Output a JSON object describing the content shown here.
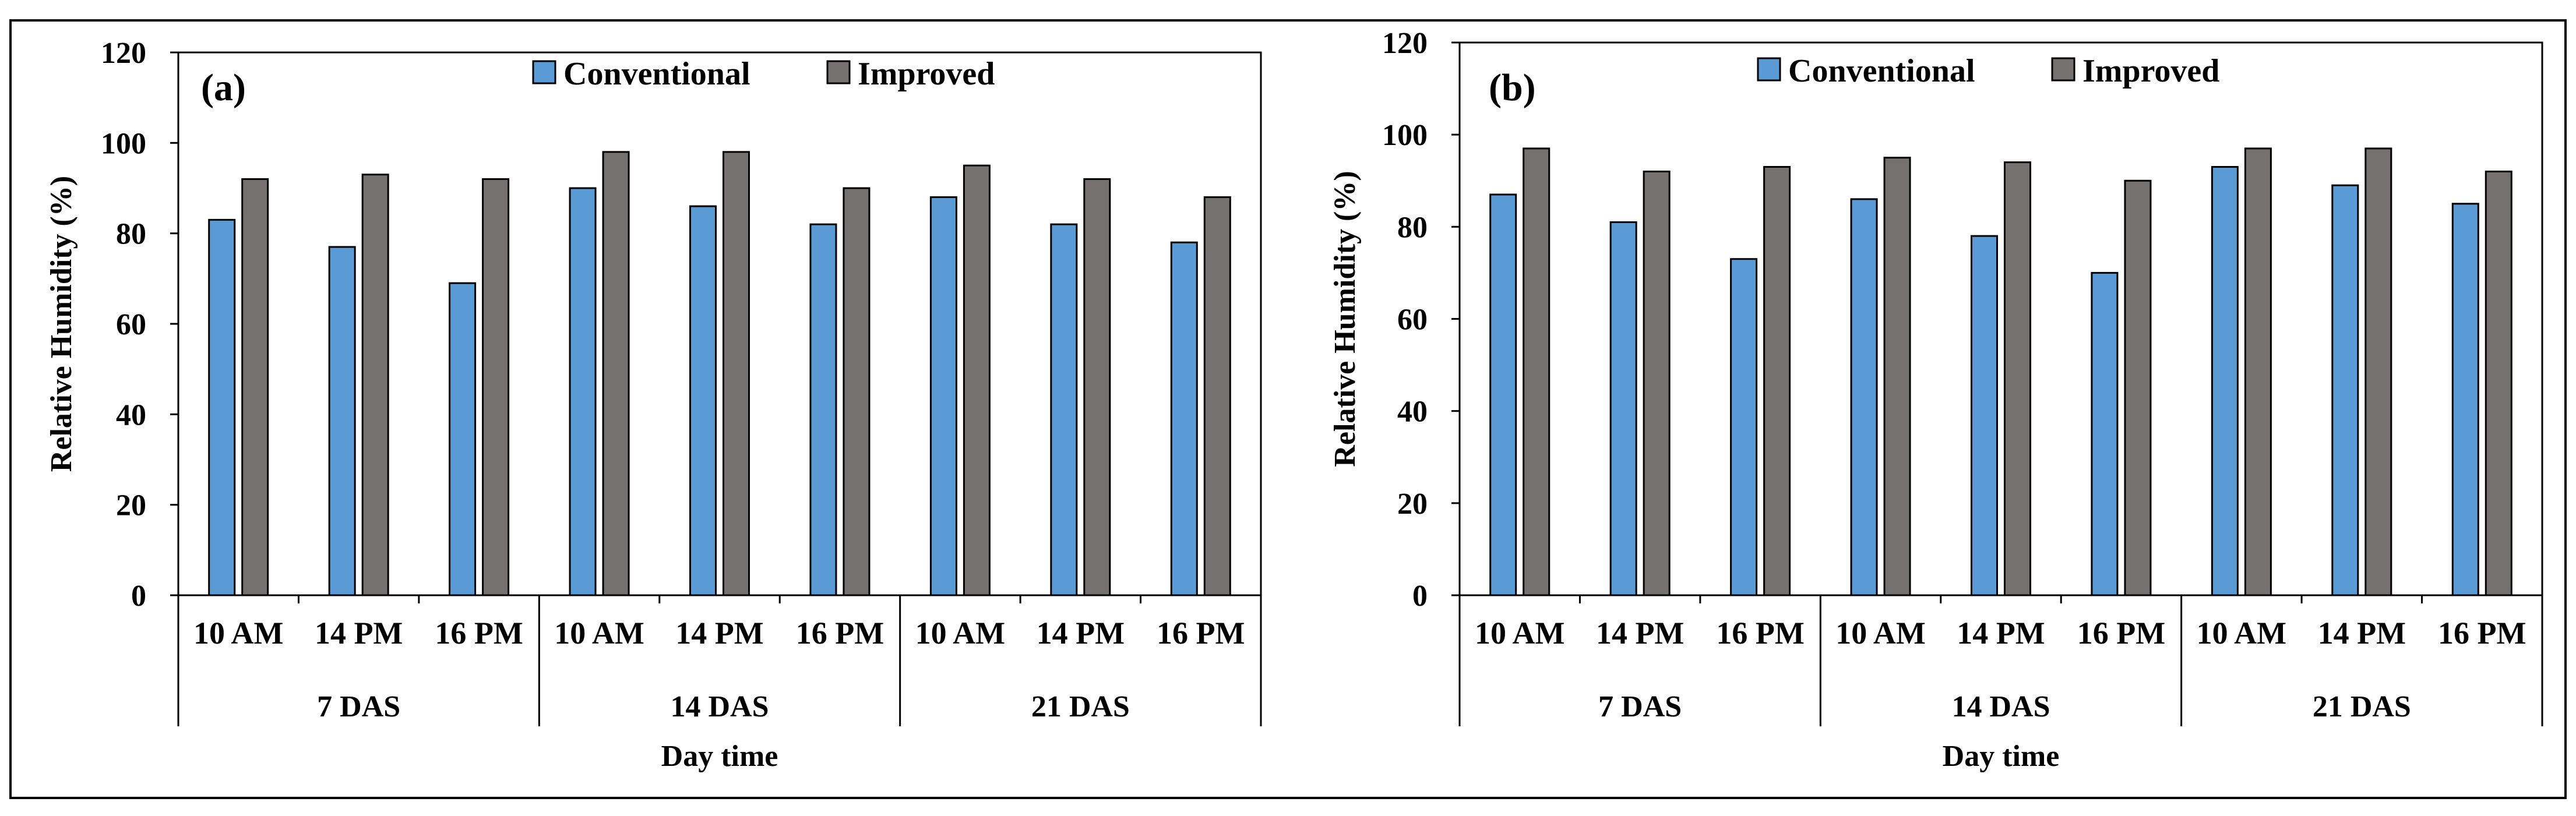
{
  "colors": {
    "conventional": "#5B9BD5",
    "improved": "#767171",
    "frame": "#000000"
  },
  "chart_data": [
    {
      "type": "bar",
      "panel": "(a)",
      "xlabel": "Day time",
      "ylabel": "Relative Humidity  (%)",
      "ylim": [
        0,
        120
      ],
      "yticks": [
        0,
        20,
        40,
        60,
        80,
        100,
        120
      ],
      "groups": [
        "7 DAS",
        "14 DAS",
        "21 DAS"
      ],
      "categories": [
        "10 AM",
        "14 PM",
        "16 PM",
        "10 AM",
        "14 PM",
        "16 PM",
        "10 AM",
        "14 PM",
        "16 PM"
      ],
      "series": [
        {
          "name": "Conventional",
          "values": [
            83,
            77,
            69,
            90,
            86,
            82,
            88,
            82,
            78
          ]
        },
        {
          "name": "Improved",
          "values": [
            92,
            93,
            92,
            98,
            98,
            90,
            95,
            92,
            88
          ]
        }
      ]
    },
    {
      "type": "bar",
      "panel": "(b)",
      "xlabel": "Day time",
      "ylabel": "Relative Humidity  (%)",
      "ylim": [
        0,
        120
      ],
      "yticks": [
        0,
        20,
        40,
        60,
        80,
        100,
        120
      ],
      "groups": [
        "7 DAS",
        "14 DAS",
        "21 DAS"
      ],
      "categories": [
        "10 AM",
        "14 PM",
        "16 PM",
        "10 AM",
        "14 PM",
        "16 PM",
        "10 AM",
        "14 PM",
        "16 PM"
      ],
      "series": [
        {
          "name": "Conventional",
          "values": [
            87,
            81,
            73,
            86,
            78,
            70,
            93,
            89,
            85
          ]
        },
        {
          "name": "Improved",
          "values": [
            97,
            92,
            93,
            95,
            94,
            90,
            97,
            97,
            92
          ]
        }
      ]
    }
  ]
}
